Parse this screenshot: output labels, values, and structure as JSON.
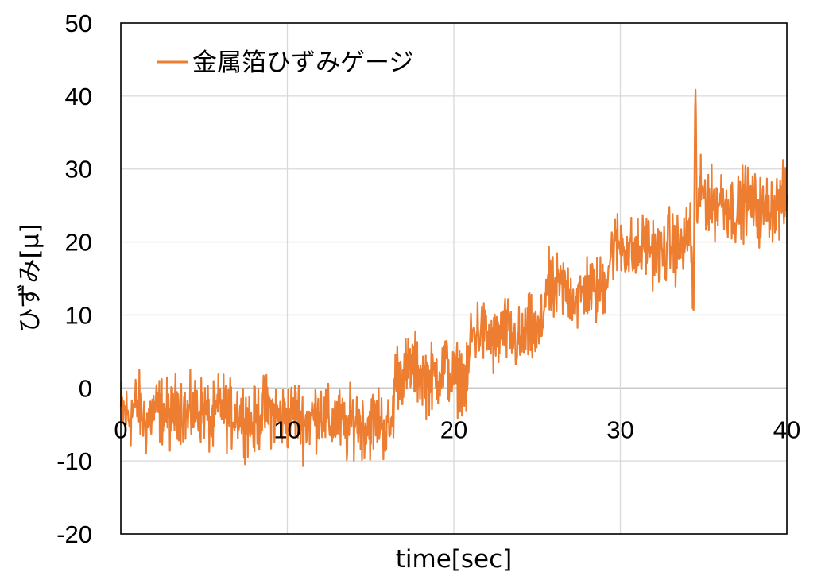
{
  "chart_data": {
    "type": "line",
    "title": "",
    "xlabel": "time[sec]",
    "ylabel": "ひずみ[μ]",
    "xlim": [
      0,
      40
    ],
    "ylim": [
      -20,
      50
    ],
    "x_ticks": [
      0,
      10,
      20,
      30,
      40
    ],
    "x_tick_labels": [
      "0",
      "10",
      "20",
      "30",
      "40"
    ],
    "y_ticks": [
      -20,
      -10,
      0,
      10,
      20,
      30,
      40,
      50
    ],
    "y_tick_labels": [
      "-20",
      "-10",
      "0",
      "10",
      "20",
      "30",
      "40",
      "50"
    ],
    "grid": true,
    "legend_position": "top-left",
    "series": [
      {
        "name": "金属箔ひずみゲージ",
        "color": "#ed7d31",
        "x": [
          0,
          0.5,
          1,
          1.5,
          2,
          2.5,
          3,
          3.5,
          4,
          4.5,
          5,
          5.5,
          6,
          6.5,
          7,
          7.5,
          8,
          8.5,
          9,
          9.5,
          10,
          10.5,
          11,
          11.5,
          12,
          12.5,
          13,
          13.5,
          14,
          14.5,
          15,
          15.5,
          16,
          16.3,
          16.5,
          17,
          17.5,
          18,
          18.5,
          19,
          19.5,
          20,
          20.5,
          20.8,
          21,
          21.5,
          22,
          22.5,
          23,
          23.5,
          24,
          24.5,
          25,
          25.3,
          25.5,
          26,
          26.5,
          27,
          27.5,
          28,
          28.5,
          29,
          29.5,
          30,
          30.5,
          31,
          31.5,
          32,
          32.5,
          33,
          33.5,
          34,
          34.2,
          34.4,
          34.5,
          34.6,
          35,
          35.5,
          36,
          36.5,
          37,
          37.5,
          38,
          38.5,
          39,
          39.5,
          40
        ],
        "values": [
          -3,
          -4,
          -2,
          -5,
          -3,
          -3,
          -4,
          -2,
          -4,
          -3,
          -3,
          -5,
          -2,
          -4,
          -3,
          -4,
          -5,
          -3,
          -3,
          -4,
          -4,
          -3,
          -5,
          -4,
          -3,
          -5,
          -4,
          -6,
          -4,
          -5,
          -5,
          -4,
          -6,
          -5,
          2,
          2,
          3,
          2,
          1,
          2,
          3,
          1,
          2,
          0,
          7,
          8,
          7,
          6,
          8,
          7,
          6,
          8,
          7,
          8,
          14,
          13,
          14,
          13,
          12,
          14,
          13,
          14,
          19,
          20,
          19,
          18,
          20,
          19,
          18,
          20,
          19,
          20,
          23,
          10,
          41,
          25,
          27,
          25,
          26,
          25,
          24,
          26,
          25,
          24,
          25,
          25,
          26
        ]
      }
    ]
  }
}
